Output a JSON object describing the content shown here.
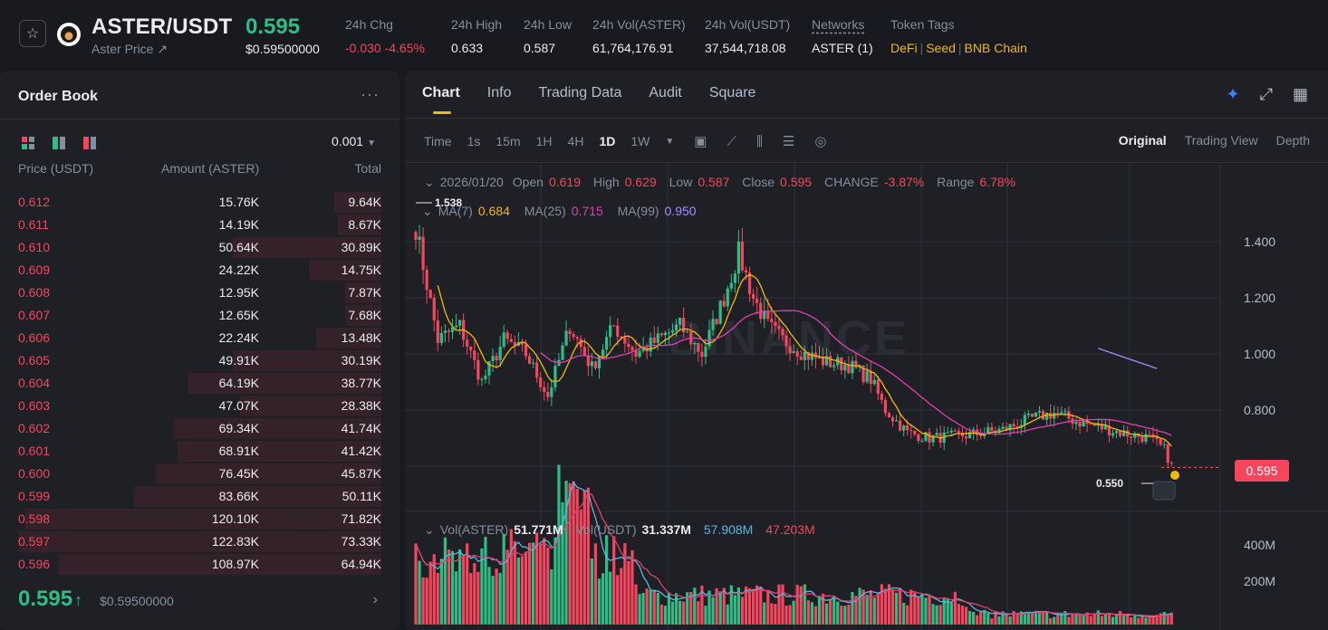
{
  "header": {
    "pair": "ASTER/USDT",
    "subtitle": "Aster Price ↗",
    "last_price": "0.595",
    "last_price_usd": "$0.59500000",
    "stats": [
      {
        "label": "24h Chg",
        "value": "-0.030 -4.65%",
        "color": "#f6465d"
      },
      {
        "label": "24h High",
        "value": "0.633"
      },
      {
        "label": "24h Low",
        "value": "0.587"
      },
      {
        "label": "24h Vol(ASTER)",
        "value": "61,764,176.91"
      },
      {
        "label": "24h Vol(USDT)",
        "value": "37,544,718.08"
      },
      {
        "label": "Networks",
        "value": "ASTER (1)"
      }
    ],
    "token_tags_label": "Token Tags",
    "token_tags": [
      "DeFi",
      "Seed",
      "BNB Chain"
    ]
  },
  "orderbook": {
    "title": "Order Book",
    "precision": "0.001",
    "headers": {
      "price": "Price (USDT)",
      "amount": "Amount (ASTER)",
      "total": "Total"
    },
    "asks": [
      {
        "price": "0.612",
        "amount": "15.76K",
        "total": "9.64K",
        "depth": 0.13
      },
      {
        "price": "0.611",
        "amount": "14.19K",
        "total": "8.67K",
        "depth": 0.12
      },
      {
        "price": "0.610",
        "amount": "50.64K",
        "total": "30.89K",
        "depth": 0.41
      },
      {
        "price": "0.609",
        "amount": "24.22K",
        "total": "14.75K",
        "depth": 0.2
      },
      {
        "price": "0.608",
        "amount": "12.95K",
        "total": "7.87K",
        "depth": 0.1
      },
      {
        "price": "0.607",
        "amount": "12.65K",
        "total": "7.68K",
        "depth": 0.1
      },
      {
        "price": "0.606",
        "amount": "22.24K",
        "total": "13.48K",
        "depth": 0.18
      },
      {
        "price": "0.605",
        "amount": "49.91K",
        "total": "30.19K",
        "depth": 0.41
      },
      {
        "price": "0.604",
        "amount": "64.19K",
        "total": "38.77K",
        "depth": 0.53
      },
      {
        "price": "0.603",
        "amount": "47.07K",
        "total": "28.38K",
        "depth": 0.39
      },
      {
        "price": "0.602",
        "amount": "69.34K",
        "total": "41.74K",
        "depth": 0.57
      },
      {
        "price": "0.601",
        "amount": "68.91K",
        "total": "41.42K",
        "depth": 0.56
      },
      {
        "price": "0.600",
        "amount": "76.45K",
        "total": "45.87K",
        "depth": 0.62
      },
      {
        "price": "0.599",
        "amount": "83.66K",
        "total": "50.11K",
        "depth": 0.68
      },
      {
        "price": "0.598",
        "amount": "120.10K",
        "total": "71.82K",
        "depth": 0.98
      },
      {
        "price": "0.597",
        "amount": "122.83K",
        "total": "73.33K",
        "depth": 1.0
      },
      {
        "price": "0.596",
        "amount": "108.97K",
        "total": "64.94K",
        "depth": 0.89
      }
    ],
    "last_price": "0.595",
    "last_arrow": "↑",
    "last_price_usd": "$0.59500000"
  },
  "chart": {
    "tabs": [
      "Chart",
      "Info",
      "Trading Data",
      "Audit",
      "Square"
    ],
    "intervals": [
      "Time",
      "1s",
      "15m",
      "1H",
      "4H",
      "1D",
      "1W"
    ],
    "active_interval": "1D",
    "views": [
      "Original",
      "Trading View",
      "Depth"
    ],
    "active_view": "Original",
    "ohlc": {
      "date": "2026/01/20",
      "open_label": "Open",
      "open": "0.619",
      "high_label": "High",
      "high": "0.629",
      "low_label": "Low",
      "low": "0.587",
      "close_label": "Close",
      "close": "0.595",
      "change_label": "CHANGE",
      "change": "-3.87%",
      "range_label": "Range",
      "range": "6.78%"
    },
    "ma": {
      "ma7_label": "MA(7)",
      "ma7": "0.684",
      "ma25_label": "MA(25)",
      "ma25": "0.715",
      "ma99_label": "MA(99)",
      "ma99": "0.950"
    },
    "vol": {
      "aster_label": "Vol(ASTER)",
      "aster": "51.771M",
      "usdt_label": "Vol(USDT)",
      "usdt": "31.337M",
      "v1": "57.908M",
      "v2": "47.203M"
    },
    "price_axis": [
      "1.400",
      "1.200",
      "1.000",
      "0.800"
    ],
    "vol_axis": [
      "400M",
      "200M"
    ],
    "current_price_tag": "0.595",
    "high_marker": "1.538",
    "low_marker": "0.550",
    "watermark": "BINANCE",
    "colors": {
      "up": "#2ebd85",
      "down": "#f6465d",
      "ma7": "#f0b90b",
      "ma25": "#e040b0",
      "ma99": "#a78bfa",
      "volma1": "#5ab6e0",
      "volma2": "#e0406a"
    }
  }
}
